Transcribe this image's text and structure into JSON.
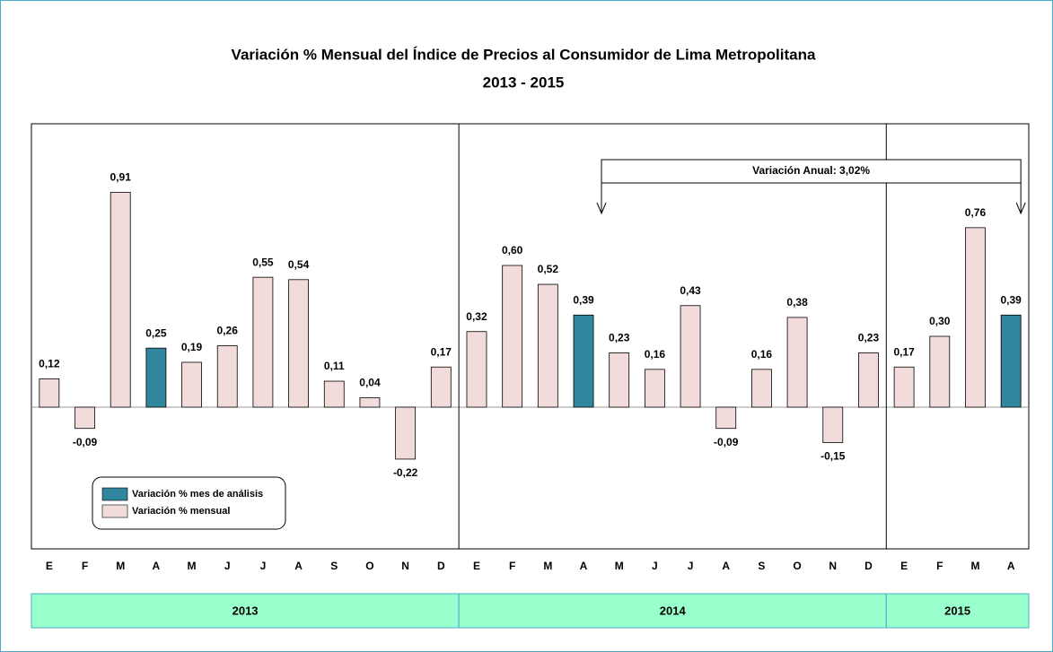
{
  "chart_data": {
    "type": "bar",
    "title": "Variación % Mensual del Índice de Precios al Consumidor de Lima Metropolitana",
    "subtitle": "2013 - 2015",
    "categories": [
      "E",
      "F",
      "M",
      "A",
      "M",
      "J",
      "J",
      "A",
      "S",
      "O",
      "N",
      "D",
      "E",
      "F",
      "M",
      "A",
      "M",
      "J",
      "J",
      "A",
      "S",
      "O",
      "N",
      "D",
      "E",
      "F",
      "M",
      "A"
    ],
    "series": [
      {
        "name": "Variación % mes de análisis",
        "color": "#31859c",
        "values": [
          null,
          null,
          null,
          0.25,
          null,
          null,
          null,
          null,
          null,
          null,
          null,
          null,
          null,
          null,
          null,
          0.39,
          null,
          null,
          null,
          null,
          null,
          null,
          null,
          null,
          null,
          null,
          null,
          0.39
        ],
        "value_labels": [
          null,
          null,
          null,
          "0,25",
          null,
          null,
          null,
          null,
          null,
          null,
          null,
          null,
          null,
          null,
          null,
          "0,39",
          null,
          null,
          null,
          null,
          null,
          null,
          null,
          null,
          null,
          null,
          null,
          "0,39"
        ]
      },
      {
        "name": "Variación % mensual",
        "color": "#f2dcdb",
        "values": [
          0.12,
          -0.09,
          0.91,
          null,
          0.19,
          0.26,
          0.55,
          0.54,
          0.11,
          0.04,
          -0.22,
          0.17,
          0.32,
          0.6,
          0.52,
          null,
          0.23,
          0.16,
          0.43,
          -0.09,
          0.16,
          0.38,
          -0.15,
          0.23,
          0.17,
          0.3,
          0.76,
          null
        ],
        "value_labels": [
          "0,12",
          "-0,09",
          "0,91",
          null,
          "0,19",
          "0,26",
          "0,55",
          "0,54",
          "0,11",
          "0,04",
          "-0,22",
          "0,17",
          "0,32",
          "0,60",
          "0,52",
          null,
          "0,23",
          "0,16",
          "0,43",
          "-0,09",
          "0,16",
          "0,38",
          "-0,15",
          "0,23",
          "0,17",
          "0,30",
          "0,76",
          null
        ]
      }
    ],
    "ylim": [
      -0.6,
      1.2
    ],
    "groups": [
      {
        "label": "2013",
        "count": 12
      },
      {
        "label": "2014",
        "count": 12
      },
      {
        "label": "2015",
        "count": 4
      }
    ],
    "annotation": {
      "text": "Variación Anual: 3,02%",
      "from": 15,
      "to": 27
    }
  }
}
